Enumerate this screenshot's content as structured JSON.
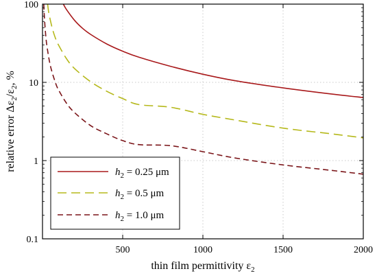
{
  "chart_data": {
    "type": "line",
    "xlabel": "thin film permittivity ε",
    "xlabel_sub": "2",
    "ylabel": {
      "pre": "relative error Δε",
      "sub1": "2",
      "mid": "/ε",
      "sub2": "2",
      "post": ", %"
    },
    "xlim": [
      0,
      2000
    ],
    "ylim": [
      0.1,
      100
    ],
    "yscale": "log",
    "grid": true,
    "x_ticks": [
      500,
      1000,
      1500,
      2000
    ],
    "x_tick_labels": [
      "500",
      "1000",
      "1500",
      "2000"
    ],
    "y_ticks": [
      0.1,
      1,
      10,
      100
    ],
    "y_tick_labels": [
      "0.1",
      "1",
      "10",
      "100"
    ],
    "legend_position": "bottom-left",
    "series": [
      {
        "label_var": "h",
        "label_sub": "2",
        "label_rest": " = 0.25 μm",
        "color": "#a8181a",
        "style": "solid",
        "x": [
          130,
          150,
          200,
          250,
          300,
          400,
          500,
          600,
          800,
          1000,
          1200,
          1500,
          1800,
          2000
        ],
        "y": [
          100,
          85,
          62,
          49,
          41,
          31,
          25,
          21,
          16,
          12.7,
          10.5,
          8.5,
          7.1,
          6.4
        ]
      },
      {
        "label_var": "h",
        "label_sub": "2",
        "label_rest": " = 0.5 μm",
        "color": "#b5b81a",
        "style": "longdash",
        "x": [
          32,
          40,
          60,
          80,
          100,
          150,
          200,
          300,
          400,
          500,
          600,
          800,
          1000,
          1200,
          1500,
          1800,
          2000
        ],
        "y": [
          100,
          76,
          50,
          37,
          30,
          20,
          15,
          10.2,
          7.7,
          6.2,
          5.2,
          4.8,
          3.9,
          3.3,
          2.6,
          2.2,
          1.95
        ]
      },
      {
        "label_var": "h",
        "label_sub": "2",
        "label_rest": " = 1.0 μm",
        "color": "#7a1418",
        "style": "dash",
        "x": [
          8,
          12,
          20,
          30,
          50,
          80,
          100,
          150,
          200,
          300,
          400,
          500,
          600,
          800,
          1000,
          1200,
          1500,
          1800,
          2000
        ],
        "y": [
          100,
          67,
          40,
          27,
          16,
          10,
          8,
          5.4,
          4.1,
          2.8,
          2.2,
          1.8,
          1.6,
          1.55,
          1.3,
          1.08,
          0.88,
          0.75,
          0.67
        ]
      }
    ]
  }
}
